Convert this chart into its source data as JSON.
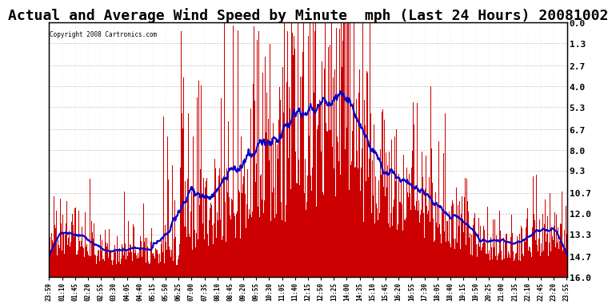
{
  "title": "Actual and Average Wind Speed by Minute  mph (Last 24 Hours) 20081002",
  "copyright": "Copyright 2008 Cartronics.com",
  "ylabel_right": [
    "16.0",
    "14.7",
    "13.3",
    "12.0",
    "10.7",
    "9.3",
    "8.0",
    "6.7",
    "5.3",
    "4.0",
    "2.7",
    "1.3",
    "0.0"
  ],
  "yticks": [
    0.0,
    1.3,
    2.7,
    4.0,
    5.3,
    6.7,
    8.0,
    9.3,
    10.7,
    12.0,
    13.3,
    14.7,
    16.0
  ],
  "ylim": [
    0.0,
    16.0
  ],
  "title_fontsize": 13,
  "bar_color": "#cc0000",
  "line_color": "#0000cc",
  "background_color": "#ffffff",
  "grid_color": "#aaaaaa",
  "x_labels": [
    "23:59",
    "01:10",
    "01:45",
    "02:20",
    "02:55",
    "03:30",
    "04:05",
    "04:40",
    "05:15",
    "05:50",
    "06:25",
    "07:00",
    "07:35",
    "08:10",
    "08:45",
    "09:20",
    "09:55",
    "10:30",
    "11:05",
    "11:40",
    "12:15",
    "12:50",
    "13:25",
    "14:00",
    "14:35",
    "15:10",
    "15:45",
    "16:20",
    "16:55",
    "17:30",
    "18:05",
    "18:40",
    "19:15",
    "19:50",
    "20:25",
    "21:00",
    "21:35",
    "22:10",
    "22:45",
    "23:20",
    "23:55"
  ]
}
